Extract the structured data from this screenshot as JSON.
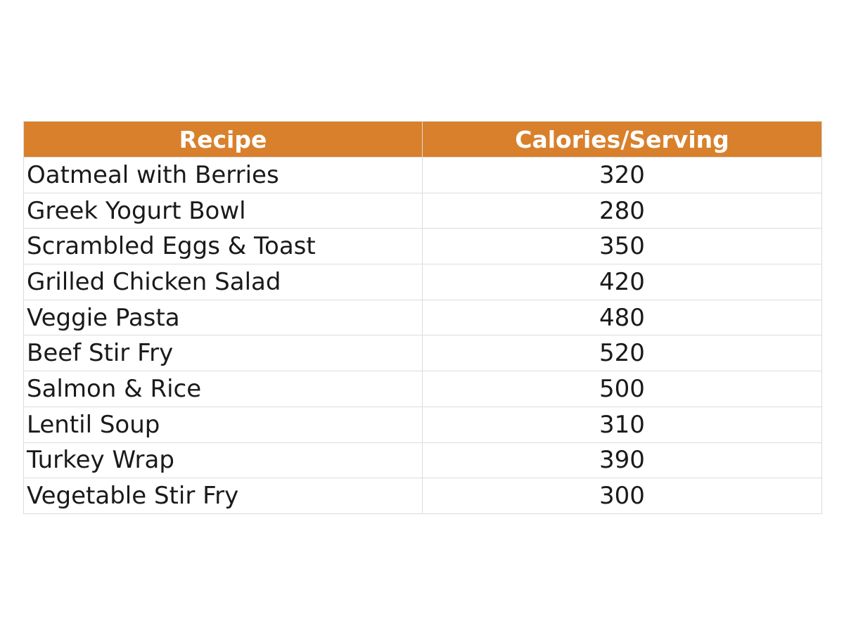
{
  "table": {
    "header": [
      "Recipe",
      "Calories/Serving"
    ],
    "rows": [
      [
        "Oatmeal with Berries",
        320
      ],
      [
        "Greek Yogurt Bowl",
        280
      ],
      [
        "Scrambled Eggs & Toast",
        350
      ],
      [
        "Grilled Chicken Salad",
        420
      ],
      [
        "Veggie Pasta",
        480
      ],
      [
        "Beef Stir Fry",
        520
      ],
      [
        "Salmon & Rice",
        500
      ],
      [
        "Lentil Soup",
        310
      ],
      [
        "Turkey Wrap",
        390
      ],
      [
        "Vegetable Stir Fry",
        300
      ]
    ]
  }
}
